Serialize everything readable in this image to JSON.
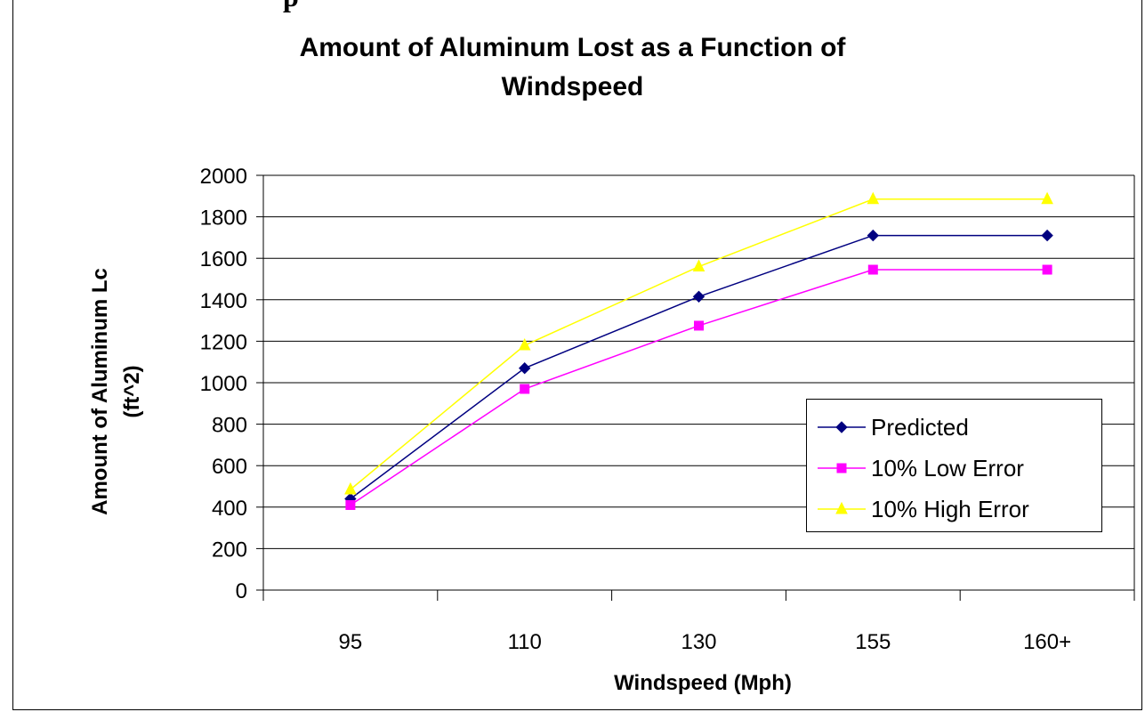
{
  "chart_data": {
    "type": "line",
    "title": [
      "Amount of Aluminum Lost as a Function of",
      "Windspeed"
    ],
    "xlabel": "Windspeed (Mph)",
    "ylabel": [
      "Amount of Aluminum Lc",
      "(ft^2)"
    ],
    "categories": [
      "95",
      "110",
      "130",
      "155",
      "160+"
    ],
    "ylim": [
      0,
      2000
    ],
    "yticks": [
      "0",
      "200",
      "400",
      "600",
      "800",
      "1000",
      "1200",
      "1400",
      "1600",
      "1800",
      "2000"
    ],
    "grid": "horizontal",
    "legend_position": "right",
    "series": [
      {
        "name": "Predicted",
        "color": "#000080",
        "marker": "diamond",
        "values": [
          440,
          1070,
          1415,
          1710,
          1710
        ]
      },
      {
        "name": "10% Low Error",
        "color": "#ff00ff",
        "marker": "square",
        "values": [
          410,
          970,
          1275,
          1545,
          1545
        ]
      },
      {
        "name": "10% High Error",
        "color": "#ffff00",
        "marker": "triangle",
        "values": [
          485,
          1180,
          1560,
          1885,
          1885
        ]
      }
    ]
  },
  "fragment_text": "p"
}
